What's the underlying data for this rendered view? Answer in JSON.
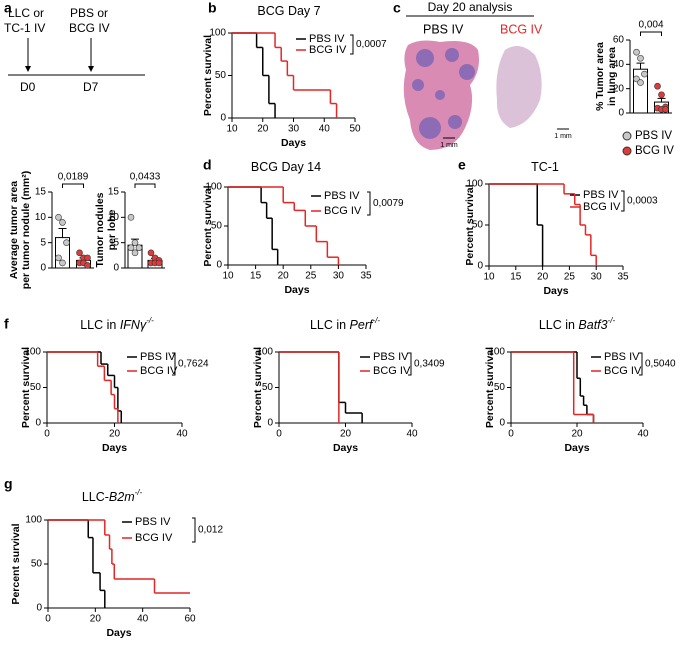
{
  "panel_labels": [
    "a",
    "b",
    "c",
    "d",
    "e",
    "f",
    "g"
  ],
  "timeline": {
    "first_lines": [
      "LLC or",
      "TC-1 IV"
    ],
    "second_lines": [
      "PBS or",
      "BCG IV"
    ],
    "days": [
      "D0",
      "D7"
    ]
  },
  "histology": {
    "title": "Day 20 analysis",
    "left_label": "PBS IV",
    "right_label": "BCG IV",
    "scale_bars": [
      "1 mm",
      "1 mm"
    ]
  },
  "chart_data": [
    {
      "type": "bar",
      "ylabel": [
        "% Tumor area",
        "in lung area"
      ],
      "ylim": [
        0,
        60
      ],
      "yticks": [
        0,
        20,
        40,
        60
      ],
      "p_value": "0,004",
      "bar_color": "#ffffff",
      "groups": [
        {
          "name": "PBS IV",
          "color": "#c8c8c8",
          "value": 36,
          "error": 5,
          "points": [
            50,
            45,
            32,
            28,
            25
          ]
        },
        {
          "name": "BCG IV",
          "color": "#e03a3a",
          "value": 9,
          "error": 3,
          "points": [
            22,
            15,
            5,
            4,
            3,
            3
          ]
        }
      ]
    },
    {
      "type": "bar",
      "ylabel": [
        "Average tumor area",
        "per tumor nodule (mm²)"
      ],
      "ylim": [
        0,
        15
      ],
      "yticks": [
        0,
        5,
        10,
        15
      ],
      "p_value": "0,0189",
      "bar_color": "#ffffff",
      "groups": [
        {
          "color": "#c8c8c8",
          "value": 6,
          "error": 1.8,
          "points": [
            10,
            9,
            5,
            2,
            1
          ]
        },
        {
          "color": "#e03a3a",
          "value": 1.5,
          "error": 0.5,
          "points": [
            3,
            2,
            2,
            1,
            1,
            0.5
          ]
        }
      ]
    },
    {
      "type": "bar",
      "ylabel": [
        "Tumor nodules",
        "per lobe"
      ],
      "ylim": [
        0,
        15
      ],
      "yticks": [
        0,
        5,
        10,
        15
      ],
      "p_value": "0,0433",
      "bar_color": "#ffffff",
      "groups": [
        {
          "color": "#c8c8c8",
          "value": 4.5,
          "error": 1.2,
          "points": [
            10,
            5,
            4,
            4,
            3
          ]
        },
        {
          "color": "#e03a3a",
          "value": 1.5,
          "error": 0.4,
          "points": [
            3,
            2,
            1.5,
            1,
            1,
            1
          ]
        }
      ]
    },
    {
      "type": "survival",
      "title": "BCG Day 7",
      "xlabel": "Days",
      "ylabel": "Percent survival",
      "p_value": "0,0007",
      "xlim": [
        10,
        50
      ],
      "xticks": [
        10,
        20,
        30,
        40,
        50
      ],
      "ylim": [
        0,
        100
      ],
      "yticks": [
        0,
        50,
        100
      ],
      "series": [
        {
          "name": "PBS IV",
          "color": "#000000",
          "x": [
            0,
            18,
            20,
            22,
            24
          ],
          "values": [
            100,
            83,
            50,
            17,
            0
          ]
        },
        {
          "name": "BCG IV",
          "color": "#e32626",
          "x": [
            0,
            24,
            26,
            28,
            30,
            42,
            44
          ],
          "values": [
            100,
            83,
            67,
            50,
            33,
            17,
            0
          ]
        }
      ]
    },
    {
      "type": "survival",
      "title": "BCG Day 14",
      "xlabel": "Days",
      "ylabel": "Percent survival",
      "p_value": "0,0079",
      "xlim": [
        10,
        35
      ],
      "xticks": [
        10,
        15,
        20,
        25,
        30,
        35
      ],
      "ylim": [
        0,
        100
      ],
      "yticks": [
        0,
        50,
        100
      ],
      "series": [
        {
          "name": "PBS IV",
          "color": "#000000",
          "x": [
            0,
            16,
            17,
            18,
            19
          ],
          "values": [
            100,
            80,
            60,
            20,
            0
          ]
        },
        {
          "name": "BCG IV",
          "color": "#e32626",
          "x": [
            0,
            20,
            22,
            24,
            26,
            28,
            30
          ],
          "values": [
            100,
            80,
            70,
            50,
            30,
            10,
            0
          ]
        }
      ]
    },
    {
      "type": "survival",
      "title": "TC-1",
      "xlabel": "Days",
      "ylabel": "Percent survival",
      "p_value": "0,0003",
      "xlim": [
        10,
        35
      ],
      "xticks": [
        10,
        15,
        20,
        25,
        30,
        35
      ],
      "ylim": [
        0,
        100
      ],
      "yticks": [
        0,
        50,
        100
      ],
      "series": [
        {
          "name": "PBS IV",
          "color": "#000000",
          "x": [
            0,
            19,
            20
          ],
          "values": [
            100,
            50,
            0
          ]
        },
        {
          "name": "BCG IV",
          "color": "#e32626",
          "x": [
            0,
            24,
            26,
            27,
            28,
            29,
            30
          ],
          "values": [
            100,
            88,
            75,
            50,
            38,
            13,
            0
          ]
        }
      ]
    },
    {
      "type": "survival",
      "title": "LLC in ",
      "title_italic": "IFNγ",
      "title_sup": "-/-",
      "xlabel": "Days",
      "ylabel": "Percent survival",
      "p_value": "0,7624",
      "xlim": [
        0,
        40
      ],
      "xticks": [
        0,
        20,
        40
      ],
      "ylim": [
        0,
        100
      ],
      "yticks": [
        0,
        50,
        100
      ],
      "series": [
        {
          "name": "PBS IV",
          "color": "#000000",
          "x": [
            0,
            16,
            18,
            20,
            21,
            22
          ],
          "values": [
            100,
            83,
            67,
            50,
            17,
            0
          ]
        },
        {
          "name": "BCG IV",
          "color": "#e32626",
          "x": [
            0,
            15,
            17,
            19,
            20,
            21
          ],
          "values": [
            100,
            80,
            60,
            40,
            20,
            0
          ]
        }
      ]
    },
    {
      "type": "survival",
      "title": "LLC in ",
      "title_italic": "Perf",
      "title_sup": "-/-",
      "xlabel": "Days",
      "ylabel": "Percent survival",
      "p_value": "0,3409",
      "xlim": [
        0,
        40
      ],
      "xticks": [
        0,
        20,
        40
      ],
      "ylim": [
        0,
        100
      ],
      "yticks": [
        0,
        50,
        100
      ],
      "series": [
        {
          "name": "PBS IV",
          "color": "#000000",
          "x": [
            0,
            18,
            20,
            25
          ],
          "values": [
            100,
            29,
            14,
            0
          ]
        },
        {
          "name": "BCG IV",
          "color": "#e32626",
          "x": [
            0,
            18
          ],
          "values": [
            100,
            0
          ]
        }
      ]
    },
    {
      "type": "survival",
      "title": "LLC in ",
      "title_italic": "Batf3",
      "title_sup": "-/-",
      "xlabel": "Days",
      "ylabel": "Percent survival",
      "p_value": "0,5040",
      "xlim": [
        0,
        40
      ],
      "xticks": [
        0,
        20,
        40
      ],
      "ylim": [
        0,
        100
      ],
      "yticks": [
        0,
        50,
        100
      ],
      "series": [
        {
          "name": "PBS IV",
          "color": "#000000",
          "x": [
            0,
            20,
            21,
            22,
            23,
            25
          ],
          "values": [
            100,
            63,
            38,
            25,
            12,
            0
          ]
        },
        {
          "name": "BCG IV",
          "color": "#e32626",
          "x": [
            0,
            19,
            25
          ],
          "values": [
            100,
            12,
            0
          ]
        }
      ]
    },
    {
      "type": "survival",
      "title": "LLC-",
      "title_italic": "B2m",
      "title_sup": "-/-",
      "xlabel": "Days",
      "ylabel": "Percent survival",
      "p_value": "0,012",
      "xlim": [
        0,
        60
      ],
      "xticks": [
        0,
        20,
        40,
        60
      ],
      "ylim": [
        0,
        100
      ],
      "yticks": [
        0,
        50,
        100
      ],
      "series": [
        {
          "name": "PBS IV",
          "color": "#000000",
          "x": [
            0,
            17,
            19,
            22,
            24
          ],
          "values": [
            100,
            80,
            40,
            20,
            0
          ]
        },
        {
          "name": "BCG IV",
          "color": "#e32626",
          "x": [
            0,
            24,
            26,
            27,
            28,
            45,
            60
          ],
          "values": [
            100,
            83,
            67,
            50,
            33,
            17,
            17
          ]
        }
      ]
    }
  ]
}
